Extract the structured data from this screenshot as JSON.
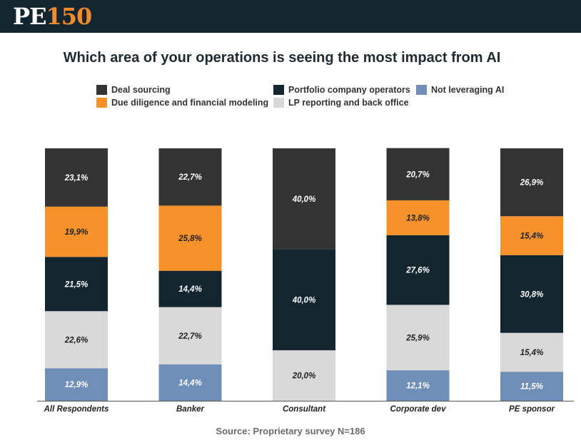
{
  "header": {
    "logo_text_pe": "PE",
    "logo_text_num": "150"
  },
  "colors": {
    "header_bg": "#13262f",
    "brand_orange": "#f28a2e"
  },
  "legend": [
    {
      "label": "Deal sourcing",
      "color": "#333333"
    },
    {
      "label": "Portfolio company operators",
      "color": "#13262f"
    },
    {
      "label": "Not leveraging AI",
      "color": "#6f8fb9"
    },
    {
      "label": "Due diligence and financial modeling",
      "color": "#f7922a"
    },
    {
      "label": "LP reporting and back office",
      "color": "#d9d9d9"
    }
  ],
  "source": "Source: Proprietary survey N=186",
  "chart_data": {
    "type": "bar",
    "stacked": true,
    "title": "Which area of your operations is seeing the most impact from AI",
    "categories": [
      "All Respondents",
      "Banker",
      "Consultant",
      "Corporate dev",
      "PE sponsor"
    ],
    "ylim": [
      0,
      100
    ],
    "xlabel": "",
    "ylabel": "",
    "grid": false,
    "legend_position": "top",
    "series": [
      {
        "name": "Not leveraging AI",
        "color": "#6f8fb9",
        "label_color": "#ffffff",
        "values": [
          12.9,
          14.4,
          0,
          12.1,
          11.5
        ],
        "labels": [
          "12,9%",
          "14,4%",
          "",
          "12,1%",
          "11,5%"
        ]
      },
      {
        "name": "LP reporting and back office",
        "color": "#d9d9d9",
        "label_color": "#222222",
        "values": [
          22.6,
          22.7,
          20.0,
          25.9,
          15.4
        ],
        "labels": [
          "22,6%",
          "22,7%",
          "20,0%",
          "25,9%",
          "15,4%"
        ]
      },
      {
        "name": "Portfolio company operators",
        "color": "#13262f",
        "label_color": "#ffffff",
        "values": [
          21.5,
          14.4,
          40.0,
          27.6,
          30.8
        ],
        "labels": [
          "21,5%",
          "14,4%",
          "40,0%",
          "27,6%",
          "30,8%"
        ]
      },
      {
        "name": "Due diligence and financial modeling",
        "color": "#f7922a",
        "label_color": "#222222",
        "values": [
          19.9,
          25.8,
          0,
          13.8,
          15.4
        ],
        "labels": [
          "19,9%",
          "25,8%",
          "",
          "13,8%",
          "15,4%"
        ]
      },
      {
        "name": "Deal sourcing",
        "color": "#333333",
        "label_color": "#ffffff",
        "values": [
          23.1,
          22.7,
          40.0,
          20.7,
          26.9
        ],
        "labels": [
          "23,1%",
          "22,7%",
          "40,0%",
          "20,7%",
          "26,9%"
        ]
      }
    ]
  }
}
